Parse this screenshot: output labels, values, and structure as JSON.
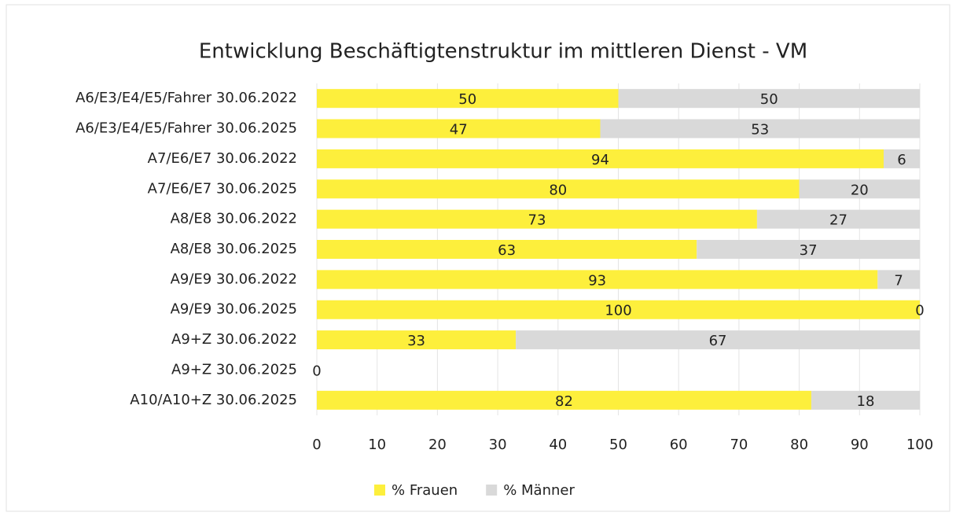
{
  "chart_data": {
    "type": "stacked_barh",
    "title": "Entwicklung Beschäftigtenstruktur im mittleren Dienst - VM",
    "categories": [
      "A6/E3/E4/E5/Fahrer 30.06.2022",
      "A6/E3/E4/E5/Fahrer 30.06.2025",
      "A7/E6/E7 30.06.2022",
      "A7/E6/E7 30.06.2025",
      "A8/E8 30.06.2022",
      "A8/E8 30.06.2025",
      "A9/E9 30.06.2022",
      "A9/E9 30.06.2025",
      "A9+Z 30.06.2022",
      "A9+Z 30.06.2025",
      "A10/A10+Z 30.06.2025"
    ],
    "series": [
      {
        "name": "% Frauen",
        "color": "#fdef3c",
        "values": [
          50,
          47,
          94,
          80,
          73,
          63,
          93,
          100,
          33,
          0,
          82
        ]
      },
      {
        "name": "% Männer",
        "color": "#d9d9d9",
        "values": [
          50,
          53,
          6,
          20,
          27,
          37,
          7,
          0,
          67,
          null,
          18
        ]
      }
    ],
    "xlim": [
      0,
      100
    ],
    "xticks": [
      0,
      10,
      20,
      30,
      40,
      50,
      60,
      70,
      80,
      90,
      100
    ],
    "grid": true,
    "legend": "bottom"
  }
}
